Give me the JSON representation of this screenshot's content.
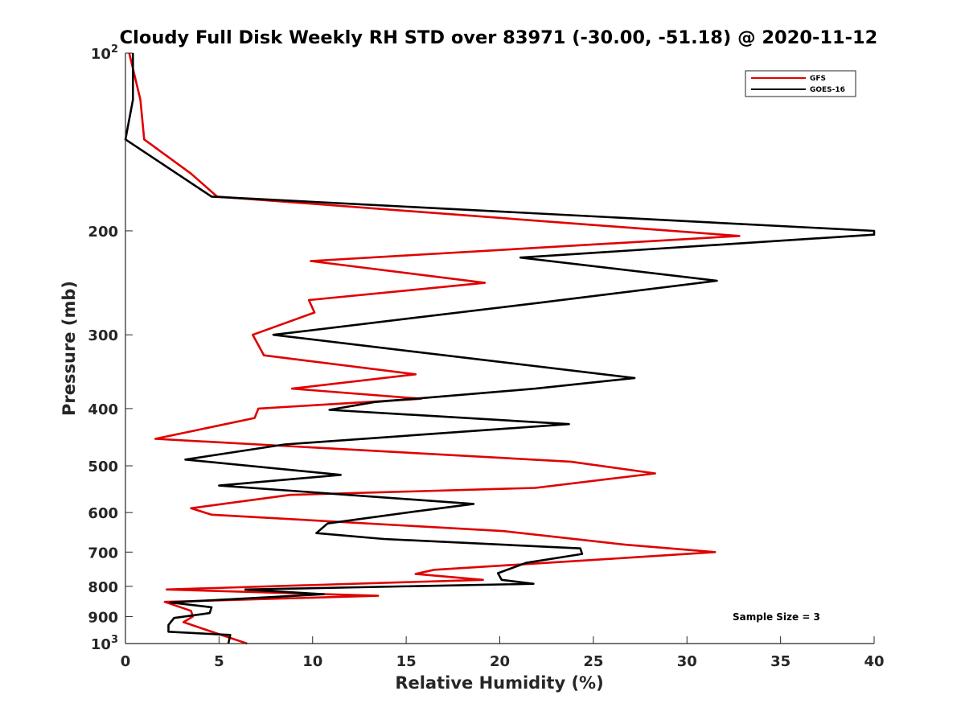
{
  "chart_data": {
    "type": "line",
    "title": "Cloudy Full Disk Weekly RH STD over 83971 (-30.00, -51.18) @ 2020-11-12",
    "xlabel": "Relative Humidity (%)",
    "ylabel": "Pressure (mb)",
    "xlim": [
      0,
      40
    ],
    "ylim": [
      100,
      1000
    ],
    "y_scale": "log",
    "y_reversed": true,
    "x_ticks": [
      "0",
      "5",
      "10",
      "15",
      "20",
      "25",
      "30",
      "35",
      "40"
    ],
    "y_ticks": [
      {
        "value": 100,
        "base": "10",
        "exp": "2"
      },
      {
        "value": 200,
        "label": "200"
      },
      {
        "value": 300,
        "label": "300"
      },
      {
        "value": 400,
        "label": "400"
      },
      {
        "value": 500,
        "label": "500"
      },
      {
        "value": 600,
        "label": "600"
      },
      {
        "value": 700,
        "label": "700"
      },
      {
        "value": 800,
        "label": "800"
      },
      {
        "value": 900,
        "label": "900"
      },
      {
        "value": 1000,
        "base": "10",
        "exp": "3"
      }
    ],
    "grid": false,
    "legend_position": "top-right",
    "series": [
      {
        "name": "GFS",
        "color": "#e00000",
        "points": [
          [
            0.2,
            100
          ],
          [
            0.8,
            120
          ],
          [
            1.0,
            140
          ],
          [
            3.5,
            160
          ],
          [
            4.9,
            175
          ],
          [
            32.8,
            204
          ],
          [
            9.9,
            225
          ],
          [
            19.2,
            245
          ],
          [
            9.8,
            262
          ],
          [
            10.1,
            275
          ],
          [
            6.8,
            300
          ],
          [
            7.4,
            325
          ],
          [
            15.5,
            350
          ],
          [
            8.9,
            370
          ],
          [
            15.8,
            385
          ],
          [
            7.1,
            400
          ],
          [
            6.9,
            415
          ],
          [
            1.6,
            450
          ],
          [
            23.8,
            492
          ],
          [
            28.3,
            515
          ],
          [
            21.9,
            545
          ],
          [
            8.8,
            560
          ],
          [
            3.5,
            590
          ],
          [
            4.6,
            605
          ],
          [
            20.2,
            645
          ],
          [
            26.7,
            680
          ],
          [
            31.5,
            700
          ],
          [
            27.0,
            715
          ],
          [
            16.5,
            750
          ],
          [
            15.5,
            762
          ],
          [
            19.1,
            780
          ],
          [
            2.2,
            810
          ],
          [
            13.5,
            830
          ],
          [
            2.1,
            850
          ],
          [
            3.5,
            880
          ],
          [
            3.6,
            900
          ],
          [
            3.1,
            920
          ],
          [
            4.4,
            950
          ],
          [
            6.5,
            1000
          ]
        ]
      },
      {
        "name": "GOES-16",
        "color": "#000000",
        "points": [
          [
            0.4,
            100
          ],
          [
            0.4,
            120
          ],
          [
            0.0,
            140
          ],
          [
            4.6,
            175
          ],
          [
            40.0,
            200
          ],
          [
            40.0,
            203
          ],
          [
            21.1,
            222
          ],
          [
            31.6,
            243
          ],
          [
            22.0,
            265
          ],
          [
            7.9,
            300
          ],
          [
            27.2,
            355
          ],
          [
            21.9,
            370
          ],
          [
            13.3,
            390
          ],
          [
            10.9,
            402
          ],
          [
            23.7,
            425
          ],
          [
            8.5,
            460
          ],
          [
            3.2,
            488
          ],
          [
            11.5,
            518
          ],
          [
            5.0,
            540
          ],
          [
            18.6,
            580
          ],
          [
            15.4,
            598
          ],
          [
            10.8,
            626
          ],
          [
            10.2,
            650
          ],
          [
            13.8,
            665
          ],
          [
            24.3,
            690
          ],
          [
            24.4,
            705
          ],
          [
            21.4,
            730
          ],
          [
            19.9,
            760
          ],
          [
            20.1,
            780
          ],
          [
            21.8,
            792
          ],
          [
            6.4,
            810
          ],
          [
            10.6,
            825
          ],
          [
            2.4,
            852
          ],
          [
            4.6,
            868
          ],
          [
            4.5,
            888
          ],
          [
            2.6,
            905
          ],
          [
            2.3,
            930
          ],
          [
            2.3,
            955
          ],
          [
            5.6,
            967
          ],
          [
            5.5,
            1000
          ]
        ]
      }
    ],
    "annotation": "Sample Size = 3"
  }
}
